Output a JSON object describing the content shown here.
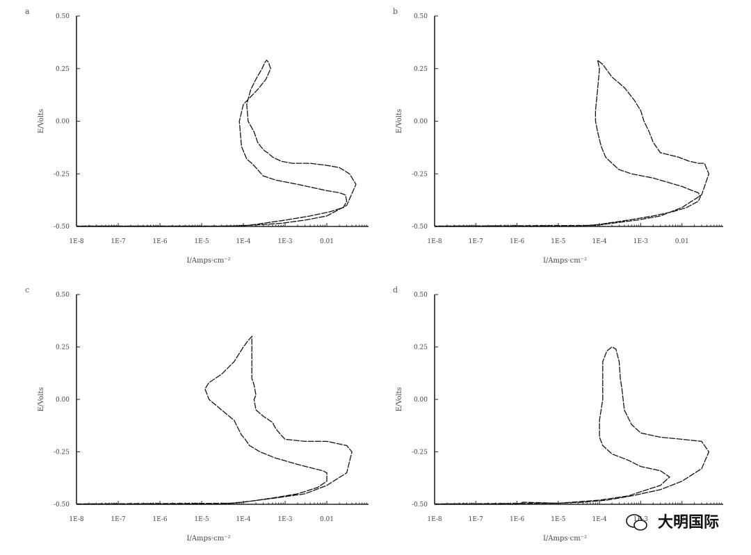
{
  "watermark": {
    "text": "大明国际",
    "icon": "wechat-icon"
  },
  "chart_data": [
    {
      "type": "line",
      "label": "a",
      "xlabel": "I/Amps·cm⁻²",
      "ylabel": "E/Volts",
      "x_scale": "log",
      "xlim": [
        1e-08,
        0.1
      ],
      "ylim": [
        -0.5,
        0.5
      ],
      "x_ticks": [
        "1E-8",
        "1E-7",
        "1E-6",
        "1E-5",
        "1E-4",
        "1E-3",
        "0.01"
      ],
      "y_ticks": [
        "0.50",
        "0.25",
        "0.00",
        "-0.25",
        "-0.50"
      ],
      "series": [
        {
          "x": [
            1e-08,
            1e-05,
            0.0001,
            0.0002,
            0.001,
            0.004,
            0.012,
            0.025,
            0.03,
            0.028,
            0.02,
            0.01,
            0.002,
            0.0006,
            0.0003,
            0.00022,
            0.00016,
            0.00012,
            9e-05,
            8e-05,
            0.0001,
            0.00022,
            0.00035,
            0.00045,
            0.0004,
            0.00036,
            0.00036,
            0.00033,
            0.00028,
            0.0002,
            0.00015,
            0.00012,
            0.00013,
            0.00018,
            0.00022,
            0.00026,
            0.00032,
            0.00038,
            0.0005,
            0.0008,
            0.0015,
            0.004,
            0.01,
            0.02,
            0.035,
            0.05,
            0.03,
            0.01,
            0.003,
            0.0008,
            0.0002,
            6e-05,
            3e-05,
            1e-08
          ],
          "y": [
            -0.5,
            -0.5,
            -0.497,
            -0.49,
            -0.47,
            -0.45,
            -0.43,
            -0.41,
            -0.38,
            -0.35,
            -0.34,
            -0.33,
            -0.3,
            -0.28,
            -0.26,
            -0.23,
            -0.2,
            -0.18,
            -0.12,
            0.0,
            0.08,
            0.15,
            0.2,
            0.25,
            0.28,
            0.29,
            0.29,
            0.28,
            0.25,
            0.2,
            0.15,
            0.08,
            0.0,
            -0.05,
            -0.1,
            -0.12,
            -0.14,
            -0.15,
            -0.17,
            -0.19,
            -0.2,
            -0.2,
            -0.21,
            -0.22,
            -0.25,
            -0.3,
            -0.4,
            -0.45,
            -0.47,
            -0.485,
            -0.493,
            -0.497,
            -0.498,
            -0.498
          ]
        }
      ]
    },
    {
      "type": "line",
      "label": "b",
      "xlabel": "I/Amps·cm⁻²",
      "ylabel": "E/Volts",
      "x_scale": "log",
      "xlim": [
        1e-08,
        0.1
      ],
      "ylim": [
        -0.5,
        0.5
      ],
      "x_ticks": [
        "1E-8",
        "1E-7",
        "1E-6",
        "1E-5",
        "1E-4",
        "1E-3",
        "0.01"
      ],
      "y_ticks": [
        "0.50",
        "0.25",
        "0.00",
        "-0.25",
        "-0.50"
      ],
      "series": [
        {
          "x": [
            1e-08,
            3e-05,
            0.0001,
            0.0005,
            0.002,
            0.006,
            0.013,
            0.025,
            0.028,
            0.025,
            0.018,
            0.01,
            0.002,
            0.0006,
            0.0003,
            0.0002,
            0.00014,
            0.00011,
            9e-05,
            8e-05,
            8e-05,
            9e-05,
            0.0001,
            9e-05,
            0.00012,
            0.0002,
            0.0004,
            0.0007,
            0.001,
            0.0012,
            0.0016,
            0.002,
            0.003,
            0.008,
            0.015,
            0.025,
            0.035,
            0.045,
            0.03,
            0.01,
            0.003,
            0.0008,
            0.0002,
            8e-05,
            1e-08
          ],
          "y": [
            -0.5,
            -0.5,
            -0.49,
            -0.47,
            -0.45,
            -0.43,
            -0.41,
            -0.38,
            -0.36,
            -0.34,
            -0.33,
            -0.31,
            -0.27,
            -0.25,
            -0.23,
            -0.2,
            -0.17,
            -0.12,
            -0.05,
            0.0,
            0.05,
            0.15,
            0.25,
            0.29,
            0.27,
            0.21,
            0.16,
            0.1,
            0.05,
            0.0,
            -0.05,
            -0.1,
            -0.15,
            -0.17,
            -0.19,
            -0.2,
            -0.2,
            -0.25,
            -0.35,
            -0.41,
            -0.45,
            -0.47,
            -0.485,
            -0.495,
            -0.498
          ]
        }
      ]
    },
    {
      "type": "line",
      "label": "c",
      "xlabel": "I/Amps·cm⁻²",
      "ylabel": "E/Volts",
      "x_scale": "log",
      "xlim": [
        1e-08,
        0.1
      ],
      "ylim": [
        -0.5,
        0.5
      ],
      "x_ticks": [
        "1E-8",
        "1E-7",
        "1E-6",
        "1E-5",
        "1E-4",
        "1E-3",
        "0.01"
      ],
      "y_ticks": [
        "0.50",
        "0.25",
        "0.00",
        "-0.25",
        "-0.50"
      ],
      "series": [
        {
          "x": [
            1e-08,
            3e-05,
            0.0001,
            0.0005,
            0.002,
            0.006,
            0.01,
            0.01,
            0.008,
            0.005,
            0.002,
            0.0006,
            0.00025,
            0.00014,
            0.00011,
            9e-05,
            6e-05,
            3e-05,
            1.5e-05,
            1.2e-05,
            1.5e-05,
            3e-05,
            6e-05,
            0.0001,
            0.00013,
            0.00016,
            0.00016,
            0.00016,
            0.00018,
            0.0002,
            0.00018,
            0.0002,
            0.0003,
            0.0005,
            0.0006,
            0.0008,
            0.001,
            0.003,
            0.01,
            0.03,
            0.04,
            0.03,
            0.01,
            0.003,
            0.0006,
            0.00015,
            5e-05,
            1e-08
          ],
          "y": [
            -0.5,
            -0.5,
            -0.49,
            -0.47,
            -0.45,
            -0.42,
            -0.39,
            -0.35,
            -0.34,
            -0.33,
            -0.31,
            -0.28,
            -0.25,
            -0.22,
            -0.19,
            -0.17,
            -0.1,
            -0.05,
            0.0,
            0.05,
            0.08,
            0.12,
            0.18,
            0.25,
            0.28,
            0.3,
            0.25,
            0.1,
            0.07,
            0.02,
            0.0,
            -0.05,
            -0.08,
            -0.11,
            -0.14,
            -0.17,
            -0.19,
            -0.2,
            -0.2,
            -0.22,
            -0.25,
            -0.35,
            -0.41,
            -0.45,
            -0.47,
            -0.485,
            -0.495,
            -0.498
          ]
        }
      ]
    },
    {
      "type": "line",
      "label": "d",
      "xlabel": "I/Amps·cm⁻²",
      "ylabel": "E/Volts",
      "x_scale": "log",
      "xlim": [
        1e-08,
        0.1
      ],
      "ylim": [
        -0.5,
        0.5
      ],
      "x_ticks": [
        "1E-8",
        "1E-7",
        "1E-6",
        "1E-5",
        "1E-4",
        "1E-3",
        "0.01"
      ],
      "y_ticks": [
        "0.50",
        "0.25",
        "0.00",
        "-0.25",
        "-0.50"
      ],
      "series": [
        {
          "x": [
            1e-08,
            1e-06,
            1.4e-06,
            1e-05,
            0.0001,
            0.0005,
            0.001,
            0.003,
            0.005,
            0.003,
            0.001,
            0.0005,
            0.0002,
            0.00012,
            0.0001,
            0.0001,
            0.00012,
            0.00012,
            0.00015,
            0.0002,
            0.00025,
            0.0003,
            0.00032,
            0.00035,
            0.0004,
            0.0006,
            0.001,
            0.003,
            0.01,
            0.03,
            0.045,
            0.03,
            0.01,
            0.003,
            0.0006,
            0.00015,
            4e-05,
            1e-05,
            1e-08
          ],
          "y": [
            -0.5,
            -0.5,
            -0.49,
            -0.495,
            -0.48,
            -0.46,
            -0.44,
            -0.41,
            -0.37,
            -0.34,
            -0.32,
            -0.29,
            -0.26,
            -0.22,
            -0.18,
            -0.1,
            0.0,
            0.18,
            0.23,
            0.25,
            0.24,
            0.18,
            0.1,
            0.05,
            -0.05,
            -0.12,
            -0.16,
            -0.18,
            -0.19,
            -0.2,
            -0.25,
            -0.33,
            -0.39,
            -0.43,
            -0.46,
            -0.48,
            -0.49,
            -0.495,
            -0.498
          ]
        }
      ]
    }
  ]
}
